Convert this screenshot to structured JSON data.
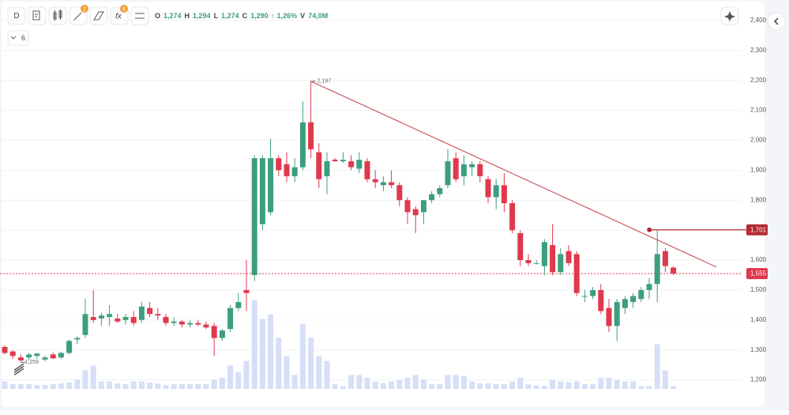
{
  "toolbar": {
    "interval": "D",
    "drawings_badge": "2",
    "indicators_badge": "6",
    "fx": "fx",
    "indicators_toggle": "6"
  },
  "legend": {
    "o_label": "O",
    "o": "1,274",
    "h_label": "H",
    "h": "1,294",
    "l_label": "L",
    "l": "1,274",
    "c_label": "C",
    "c": "1,290",
    "change": "↑ 1,26%",
    "v_label": "V",
    "v": "74,0M"
  },
  "chart_data": {
    "type": "candlestick",
    "up_color": "#3d9e7e",
    "down_color": "#e0384c",
    "volume_color": "#d6def8",
    "ylim": [
      1170,
      2455
    ],
    "yticks": [
      {
        "value": 2400,
        "label": "2,400"
      },
      {
        "value": 2300,
        "label": "2,300"
      },
      {
        "value": 2200,
        "label": "2,200"
      },
      {
        "value": 2100,
        "label": "2,100"
      },
      {
        "value": 2000,
        "label": "2,000"
      },
      {
        "value": 1900,
        "label": "1,900"
      },
      {
        "value": 1800,
        "label": "1,800"
      },
      {
        "value": 1700,
        "label": "1,700"
      },
      {
        "value": 1600,
        "label": "1,600"
      },
      {
        "value": 1500,
        "label": "1,500"
      },
      {
        "value": 1400,
        "label": "1,400"
      },
      {
        "value": 1300,
        "label": "1,300"
      },
      {
        "value": 1200,
        "label": "1,200"
      }
    ],
    "grid": true,
    "open": [
      1310,
      1295,
      1275,
      1275,
      1280,
      1268,
      1285,
      1275,
      1290,
      1335,
      1350,
      1410,
      1405,
      1410,
      1405,
      1400,
      1410,
      1400,
      1440,
      1420,
      1410,
      1390,
      1395,
      1385,
      1390,
      1385,
      1380,
      1340,
      1370,
      1440,
      1500,
      1550,
      1720,
      1760,
      1940,
      1920,
      1880,
      1910,
      2060,
      1960,
      1880,
      1935,
      1930,
      1930,
      1905,
      1930,
      1870,
      1850,
      1860,
      1850,
      1800,
      1770,
      1760,
      1800,
      1820,
      1850,
      1940,
      1880,
      1910,
      1920,
      1870,
      1810,
      1850,
      1790,
      1690,
      1600,
      1590,
      1580,
      1650,
      1560,
      1630,
      1620,
      1480,
      1480,
      1500,
      1440,
      1380,
      1440,
      1460,
      1470,
      1500,
      1520,
      1630,
      1575
    ],
    "high": [
      1315,
      1300,
      1285,
      1290,
      1290,
      1280,
      1292,
      1295,
      1335,
      1345,
      1470,
      1500,
      1425,
      1450,
      1420,
      1420,
      1430,
      1460,
      1460,
      1440,
      1420,
      1410,
      1400,
      1400,
      1400,
      1395,
      1390,
      1370,
      1450,
      1490,
      1600,
      1950,
      1950,
      2005,
      1950,
      1960,
      1940,
      2130,
      2197,
      1990,
      1960,
      1940,
      1960,
      1950,
      1960,
      1940,
      1900,
      1880,
      1900,
      1860,
      1810,
      1780,
      1800,
      1830,
      1850,
      1970,
      1960,
      1950,
      1930,
      1930,
      1880,
      1870,
      1890,
      1800,
      1700,
      1620,
      1600,
      1670,
      1720,
      1640,
      1650,
      1630,
      1500,
      1510,
      1520,
      1470,
      1470,
      1480,
      1490,
      1510,
      1540,
      1701,
      1640,
      1580
    ],
    "low": [
      1285,
      1270,
      1259,
      1265,
      1270,
      1262,
      1270,
      1270,
      1285,
      1320,
      1340,
      1390,
      1380,
      1380,
      1390,
      1385,
      1380,
      1390,
      1410,
      1400,
      1380,
      1380,
      1375,
      1375,
      1380,
      1370,
      1280,
      1330,
      1360,
      1430,
      1430,
      1530,
      1700,
      1750,
      1880,
      1860,
      1860,
      1900,
      1940,
      1840,
      1820,
      1928,
      1925,
      1900,
      1890,
      1860,
      1840,
      1830,
      1840,
      1780,
      1720,
      1690,
      1720,
      1790,
      1810,
      1840,
      1860,
      1850,
      1880,
      1860,
      1790,
      1770,
      1760,
      1690,
      1580,
      1580,
      1585,
      1550,
      1550,
      1550,
      1580,
      1480,
      1460,
      1470,
      1420,
      1360,
      1330,
      1420,
      1440,
      1460,
      1470,
      1460,
      1560,
      1550
    ],
    "close": [
      1290,
      1280,
      1265,
      1285,
      1288,
      1275,
      1272,
      1290,
      1330,
      1340,
      1420,
      1400,
      1415,
      1420,
      1395,
      1410,
      1390,
      1445,
      1420,
      1415,
      1390,
      1395,
      1385,
      1390,
      1385,
      1375,
      1340,
      1365,
      1440,
      1460,
      1490,
      1940,
      1940,
      1940,
      1900,
      1880,
      1910,
      2060,
      1970,
      1870,
      1930,
      1930,
      1935,
      1910,
      1935,
      1870,
      1860,
      1860,
      1850,
      1800,
      1760,
      1750,
      1800,
      1820,
      1840,
      1930,
      1870,
      1920,
      1920,
      1880,
      1810,
      1850,
      1790,
      1700,
      1600,
      1590,
      1590,
      1660,
      1560,
      1620,
      1590,
      1490,
      1480,
      1500,
      1430,
      1380,
      1460,
      1470,
      1480,
      1500,
      1520,
      1620,
      1580,
      1555
    ],
    "volume": [
      8,
      5,
      5,
      5,
      4,
      4,
      5,
      6,
      7,
      10,
      20,
      25,
      8,
      8,
      6,
      5,
      8,
      8,
      7,
      6,
      4,
      5,
      5,
      5,
      5,
      5,
      10,
      12,
      25,
      18,
      30,
      95,
      75,
      80,
      55,
      35,
      15,
      70,
      55,
      35,
      30,
      5,
      3,
      15,
      15,
      12,
      8,
      6,
      8,
      10,
      12,
      15,
      10,
      5,
      5,
      15,
      15,
      14,
      8,
      6,
      6,
      5,
      5,
      8,
      12,
      5,
      4,
      3,
      10,
      8,
      7,
      8,
      5,
      5,
      12,
      12,
      10,
      8,
      8,
      3,
      3,
      48,
      20,
      3
    ],
    "high_annotation": {
      "value": 2197,
      "label": "2,197"
    },
    "low_annotation": {
      "value": 1259,
      "label": "1,259"
    },
    "trendline": [
      2197,
      1577
    ],
    "level": {
      "value": 1701,
      "label": "1,701"
    },
    "last_price": {
      "value": 1555,
      "label": "1,555"
    }
  }
}
